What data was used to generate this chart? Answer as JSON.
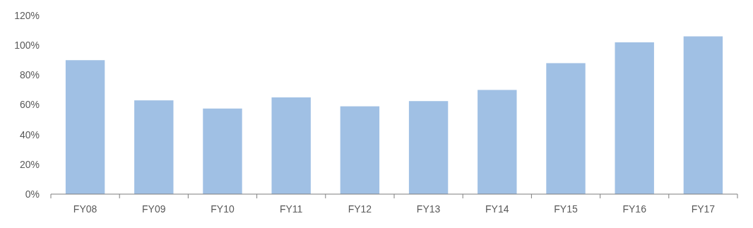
{
  "chart_data": {
    "type": "bar",
    "categories": [
      "FY08",
      "FY09",
      "FY10",
      "FY11",
      "FY12",
      "FY13",
      "FY14",
      "FY15",
      "FY16",
      "FY17"
    ],
    "values": [
      90,
      63,
      57.5,
      65,
      59,
      62.5,
      70,
      88,
      102,
      106
    ],
    "color": "#a0c0e4",
    "ylim": [
      0,
      120
    ],
    "yticks": [
      {
        "value": 0,
        "label": "0%"
      },
      {
        "value": 20,
        "label": "20%"
      },
      {
        "value": 40,
        "label": "40%"
      },
      {
        "value": 60,
        "label": "60%"
      },
      {
        "value": 80,
        "label": "80%"
      },
      {
        "value": 100,
        "label": "100%"
      },
      {
        "value": 120,
        "label": "120%"
      }
    ],
    "grid": false
  }
}
